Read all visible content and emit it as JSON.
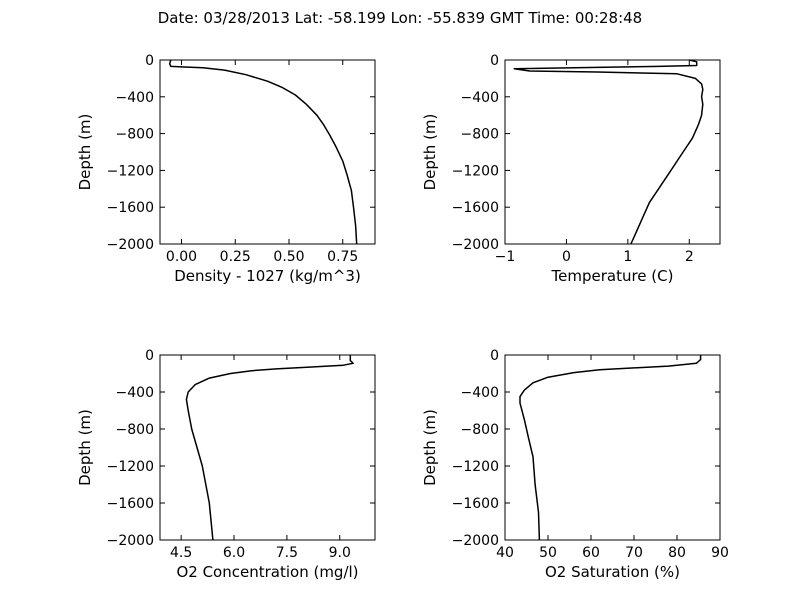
{
  "figure": {
    "title": "Date: 03/28/2013  Lat:  -58.199 Lon:  -55.839  GMT Time: 00:28:48"
  },
  "chart_data": [
    {
      "type": "line",
      "xlabel": "Density - 1027 (kg/m^3)",
      "ylabel": "Depth (m)",
      "xlim": [
        -0.1,
        0.9
      ],
      "ylim": [
        -2000,
        0
      ],
      "xticks": [
        0.0,
        0.25,
        0.5,
        0.75
      ],
      "xtick_labels": [
        "0.00",
        "0.25",
        "0.50",
        "0.75"
      ],
      "yticks": [
        0,
        -400,
        -800,
        -1200,
        -1600,
        -2000
      ],
      "ytick_labels": [
        "0",
        "−400",
        "−800",
        "−1200",
        "−1600",
        "−2000"
      ],
      "grid": false,
      "x": [
        -0.05,
        -0.055,
        -0.05,
        0.0,
        0.1,
        0.2,
        0.3,
        0.4,
        0.47,
        0.53,
        0.58,
        0.63,
        0.66,
        0.69,
        0.72,
        0.75,
        0.77,
        0.79,
        0.8,
        0.81,
        0.815
      ],
      "y": [
        0,
        -40,
        -70,
        -75,
        -85,
        -110,
        -160,
        -230,
        -300,
        -380,
        -480,
        -600,
        -700,
        -820,
        -950,
        -1100,
        -1250,
        -1420,
        -1600,
        -1800,
        -2000
      ]
    },
    {
      "type": "line",
      "xlabel": "Temperature (C)",
      "ylabel": "Depth (m)",
      "xlim": [
        -1,
        2.5
      ],
      "ylim": [
        -2000,
        0
      ],
      "xticks": [
        -1,
        0,
        1,
        2
      ],
      "xtick_labels": [
        "−1",
        "0",
        "1",
        "2"
      ],
      "yticks": [
        0,
        -400,
        -800,
        -1200,
        -1600,
        -2000
      ],
      "ytick_labels": [
        "0",
        "−400",
        "−800",
        "−1200",
        "−1600",
        "−2000"
      ],
      "grid": false,
      "x": [
        2.0,
        2.12,
        2.12,
        1.5,
        0.5,
        -0.85,
        -0.6,
        0.5,
        1.8,
        2.1,
        2.2,
        2.22,
        2.2,
        2.22,
        2.2,
        2.15,
        2.05,
        1.9,
        1.7,
        1.5,
        1.35,
        1.25,
        1.15,
        1.05
      ],
      "y": [
        0,
        -20,
        -60,
        -70,
        -80,
        -95,
        -120,
        -130,
        -150,
        -200,
        -260,
        -320,
        -400,
        -480,
        -600,
        -700,
        -850,
        -1000,
        -1200,
        -1400,
        -1550,
        -1700,
        -1850,
        -2000
      ]
    },
    {
      "type": "line",
      "xlabel": "O2 Concentration (mg/l)",
      "ylabel": "Depth (m)",
      "xlim": [
        3.9,
        10.0
      ],
      "ylim": [
        -2000,
        0
      ],
      "xticks": [
        4.5,
        6.0,
        7.5,
        9.0
      ],
      "xtick_labels": [
        "4.5",
        "6.0",
        "7.5",
        "9.0"
      ],
      "yticks": [
        0,
        -400,
        -800,
        -1200,
        -1600,
        -2000
      ],
      "ytick_labels": [
        "0",
        "−400",
        "−800",
        "−1200",
        "−1600",
        "−2000"
      ],
      "grid": false,
      "x": [
        9.3,
        9.3,
        9.38,
        9.1,
        8.2,
        7.2,
        6.5,
        5.9,
        5.3,
        4.9,
        4.7,
        4.65,
        4.7,
        4.8,
        4.95,
        5.1,
        5.2,
        5.3,
        5.35,
        5.4
      ],
      "y": [
        0,
        -60,
        -90,
        -110,
        -130,
        -150,
        -170,
        -200,
        -250,
        -320,
        -400,
        -480,
        -600,
        -800,
        -1000,
        -1200,
        -1400,
        -1600,
        -1800,
        -2000
      ]
    },
    {
      "type": "line",
      "xlabel": "O2 Saturation (%)",
      "ylabel": "Depth (m)",
      "xlim": [
        40,
        90
      ],
      "ylim": [
        -2000,
        0
      ],
      "xticks": [
        40,
        50,
        60,
        70,
        80,
        90
      ],
      "xtick_labels": [
        "40",
        "50",
        "60",
        "70",
        "80",
        "90"
      ],
      "yticks": [
        0,
        -400,
        -800,
        -1200,
        -1600,
        -2000
      ],
      "ytick_labels": [
        "0",
        "−400",
        "−800",
        "−1200",
        "−1600",
        "−2000"
      ],
      "grid": false,
      "x": [
        85.5,
        85.5,
        84.5,
        78,
        70,
        62,
        56,
        50,
        46.5,
        44.5,
        43.5,
        43.5,
        44.5,
        45.5,
        46.5,
        47,
        47.8,
        48
      ],
      "y": [
        0,
        -50,
        -90,
        -120,
        -140,
        -160,
        -190,
        -240,
        -300,
        -380,
        -450,
        -520,
        -700,
        -900,
        -1100,
        -1400,
        -1700,
        -2000
      ]
    }
  ]
}
